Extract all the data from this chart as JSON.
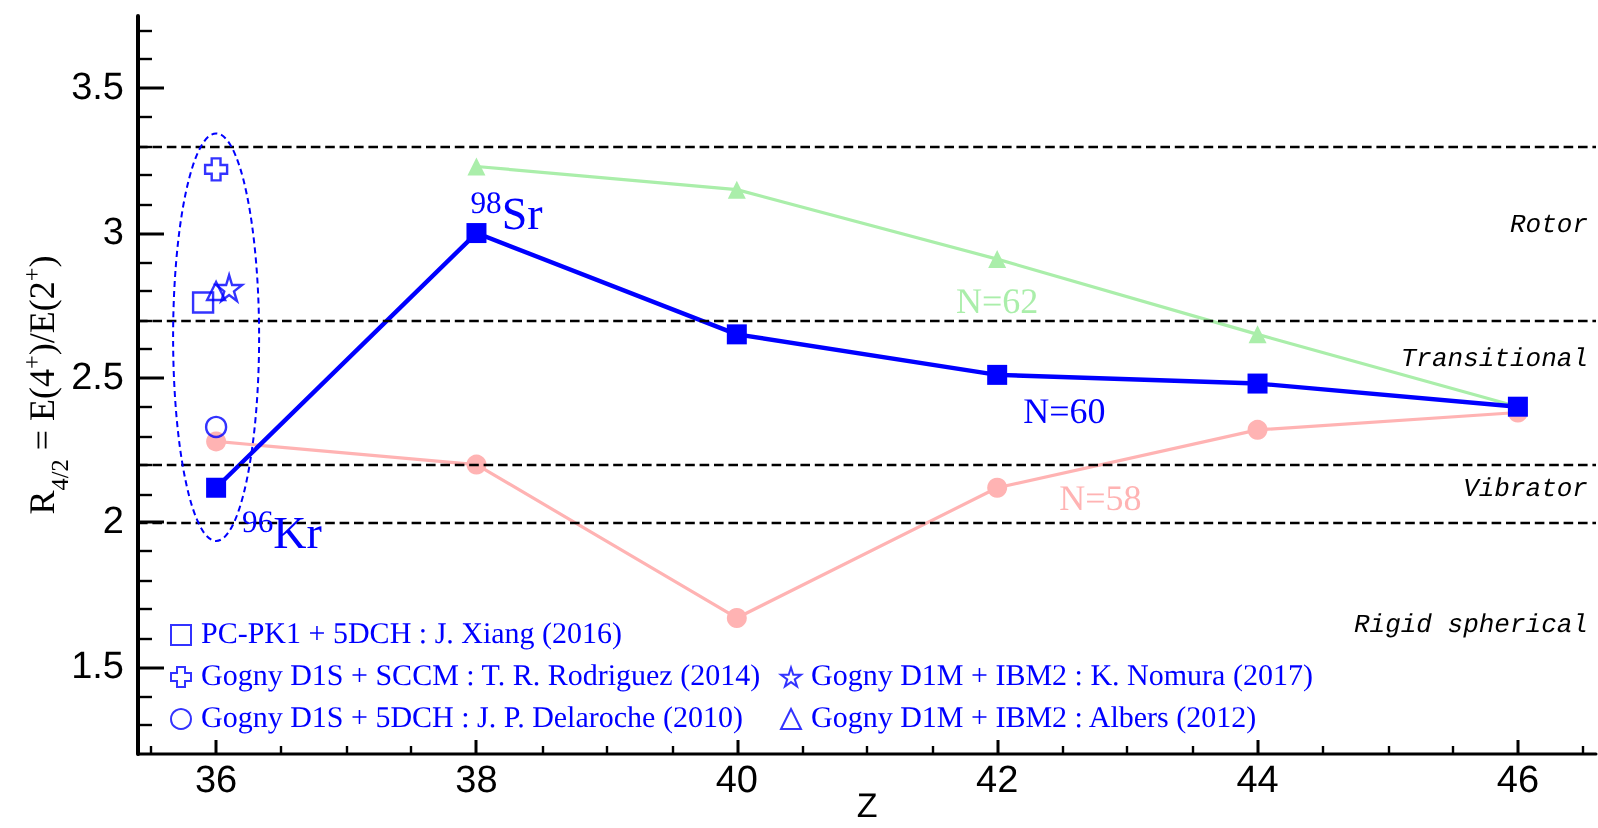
{
  "chart_data": {
    "type": "line",
    "xlabel": "Z",
    "ylabel": "R$_{4/2}$ = E(4$^{+}$)/E(2$^{+}$)",
    "xlim": [
      35.4,
      46.6
    ],
    "ylim": [
      1.2,
      3.75
    ],
    "xticks": [
      {
        "value": 35.5,
        "label": null
      },
      36,
      {
        "value": 36.5,
        "label": null
      },
      {
        "value": 37,
        "label": null
      },
      {
        "value": 37.5,
        "label": null
      },
      38,
      {
        "value": 38.5,
        "label": null
      },
      {
        "value": 39,
        "label": null
      },
      {
        "value": 39.5,
        "label": null
      },
      40,
      {
        "value": 40.5,
        "label": null
      },
      {
        "value": 41,
        "label": null
      },
      {
        "value": 41.5,
        "label": null
      },
      42,
      {
        "value": 42.5,
        "label": null
      },
      {
        "value": 43,
        "label": null
      },
      {
        "value": 43.5,
        "label": null
      },
      44,
      {
        "value": 44.5,
        "label": null
      },
      {
        "value": 45,
        "label": null
      },
      {
        "value": 45.5,
        "label": null
      },
      46,
      {
        "value": 46.5,
        "label": null
      }
    ],
    "yticks": [
      {
        "value": 1.3,
        "label": null
      },
      {
        "value": 1.4,
        "label": null
      },
      1.5,
      {
        "value": 1.6,
        "label": null
      },
      {
        "value": 1.7,
        "label": null
      },
      {
        "value": 1.8,
        "label": null
      },
      {
        "value": 1.9,
        "label": null
      },
      2,
      {
        "value": 2.1,
        "label": null
      },
      {
        "value": 2.2,
        "label": null
      },
      {
        "value": 2.3,
        "label": null
      },
      {
        "value": 2.4,
        "label": null
      },
      2.5,
      {
        "value": 2.6,
        "label": null
      },
      {
        "value": 2.7,
        "label": null
      },
      {
        "value": 2.8,
        "label": null
      },
      {
        "value": 2.9,
        "label": null
      },
      3,
      {
        "value": 3.1,
        "label": null
      },
      {
        "value": 3.2,
        "label": null
      },
      {
        "value": 3.3,
        "label": null
      },
      {
        "value": 3.4,
        "label": null
      },
      3.5,
      {
        "value": 3.6,
        "label": null
      },
      {
        "value": 3.7,
        "label": null
      }
    ],
    "series": [
      {
        "name": "PC-PK1 + 5DCH : J. Xiang (2016)",
        "type": "scatter",
        "marker": "square",
        "color": "#0000ff",
        "x": [
          35.9
        ],
        "values": [
          2.76
        ]
      },
      {
        "name": "Gogny D1S + SCCM : T. R. Rodriguez (2014)",
        "type": "scatter",
        "marker": "cross",
        "color": "#0000ff",
        "x": [
          36
        ],
        "values": [
          3.22
        ]
      },
      {
        "name": "Gogny D1S + 5DCH : J. P. Delaroche (2010)",
        "type": "scatter",
        "marker": "circle",
        "color": "#0000ff",
        "x": [
          36
        ],
        "values": [
          2.33
        ]
      },
      {
        "name": "Gogny D1M + IBM2 : K. Nomura (2017)",
        "type": "scatter",
        "marker": "star",
        "color": "#0000ff",
        "x": [
          36.1
        ],
        "values": [
          2.81
        ]
      },
      {
        "name": "Gogny D1M + IBM2 : Albers (2012)",
        "type": "scatter",
        "marker": "triangle",
        "color": "#0000ff",
        "x": [
          36
        ],
        "values": [
          2.8
        ]
      },
      {
        "name": "N=60",
        "marker": "square",
        "color": "#0000ff",
        "x": [
          36,
          38,
          40,
          42,
          44,
          46
        ],
        "values": [
          2.12,
          3.0,
          2.65,
          2.51,
          2.48,
          2.4
        ]
      },
      {
        "name": "N=62",
        "marker": "triangle",
        "color": "#aaeeaa",
        "x": [
          38,
          40,
          42,
          44,
          46
        ],
        "values": [
          3.23,
          3.15,
          2.91,
          2.65,
          2.4
        ]
      },
      {
        "name": "N=58",
        "marker": "circle",
        "color": "#ffb3b3",
        "x": [
          36,
          38,
          40,
          42,
          44,
          46
        ],
        "values": [
          2.28,
          2.2,
          1.67,
          2.12,
          2.32,
          2.38
        ]
      }
    ],
    "ref_lines": [
      {
        "axis": "y",
        "value": 3.3,
        "color": "#000000",
        "line_style": "dashed"
      },
      {
        "axis": "y",
        "value": 2.7,
        "color": "#000000",
        "line_style": "dashed"
      },
      {
        "axis": "y",
        "value": 2.2,
        "color": "#000000",
        "line_style": "dashed"
      },
      {
        "axis": "y",
        "value": 2.0,
        "color": "#000000",
        "line_style": "dashed"
      }
    ],
    "annotations": [
      "Rotor",
      "Transitional",
      "Vibrator",
      "Rigid spherical",
      {
        "text": "$^{98}$Sr",
        "x": 38,
        "y": 3.0
      },
      {
        "text": "$^{96}$Kr",
        "x": 36,
        "y": 2.12
      }
    ],
    "legend": "bottom left"
  }
}
